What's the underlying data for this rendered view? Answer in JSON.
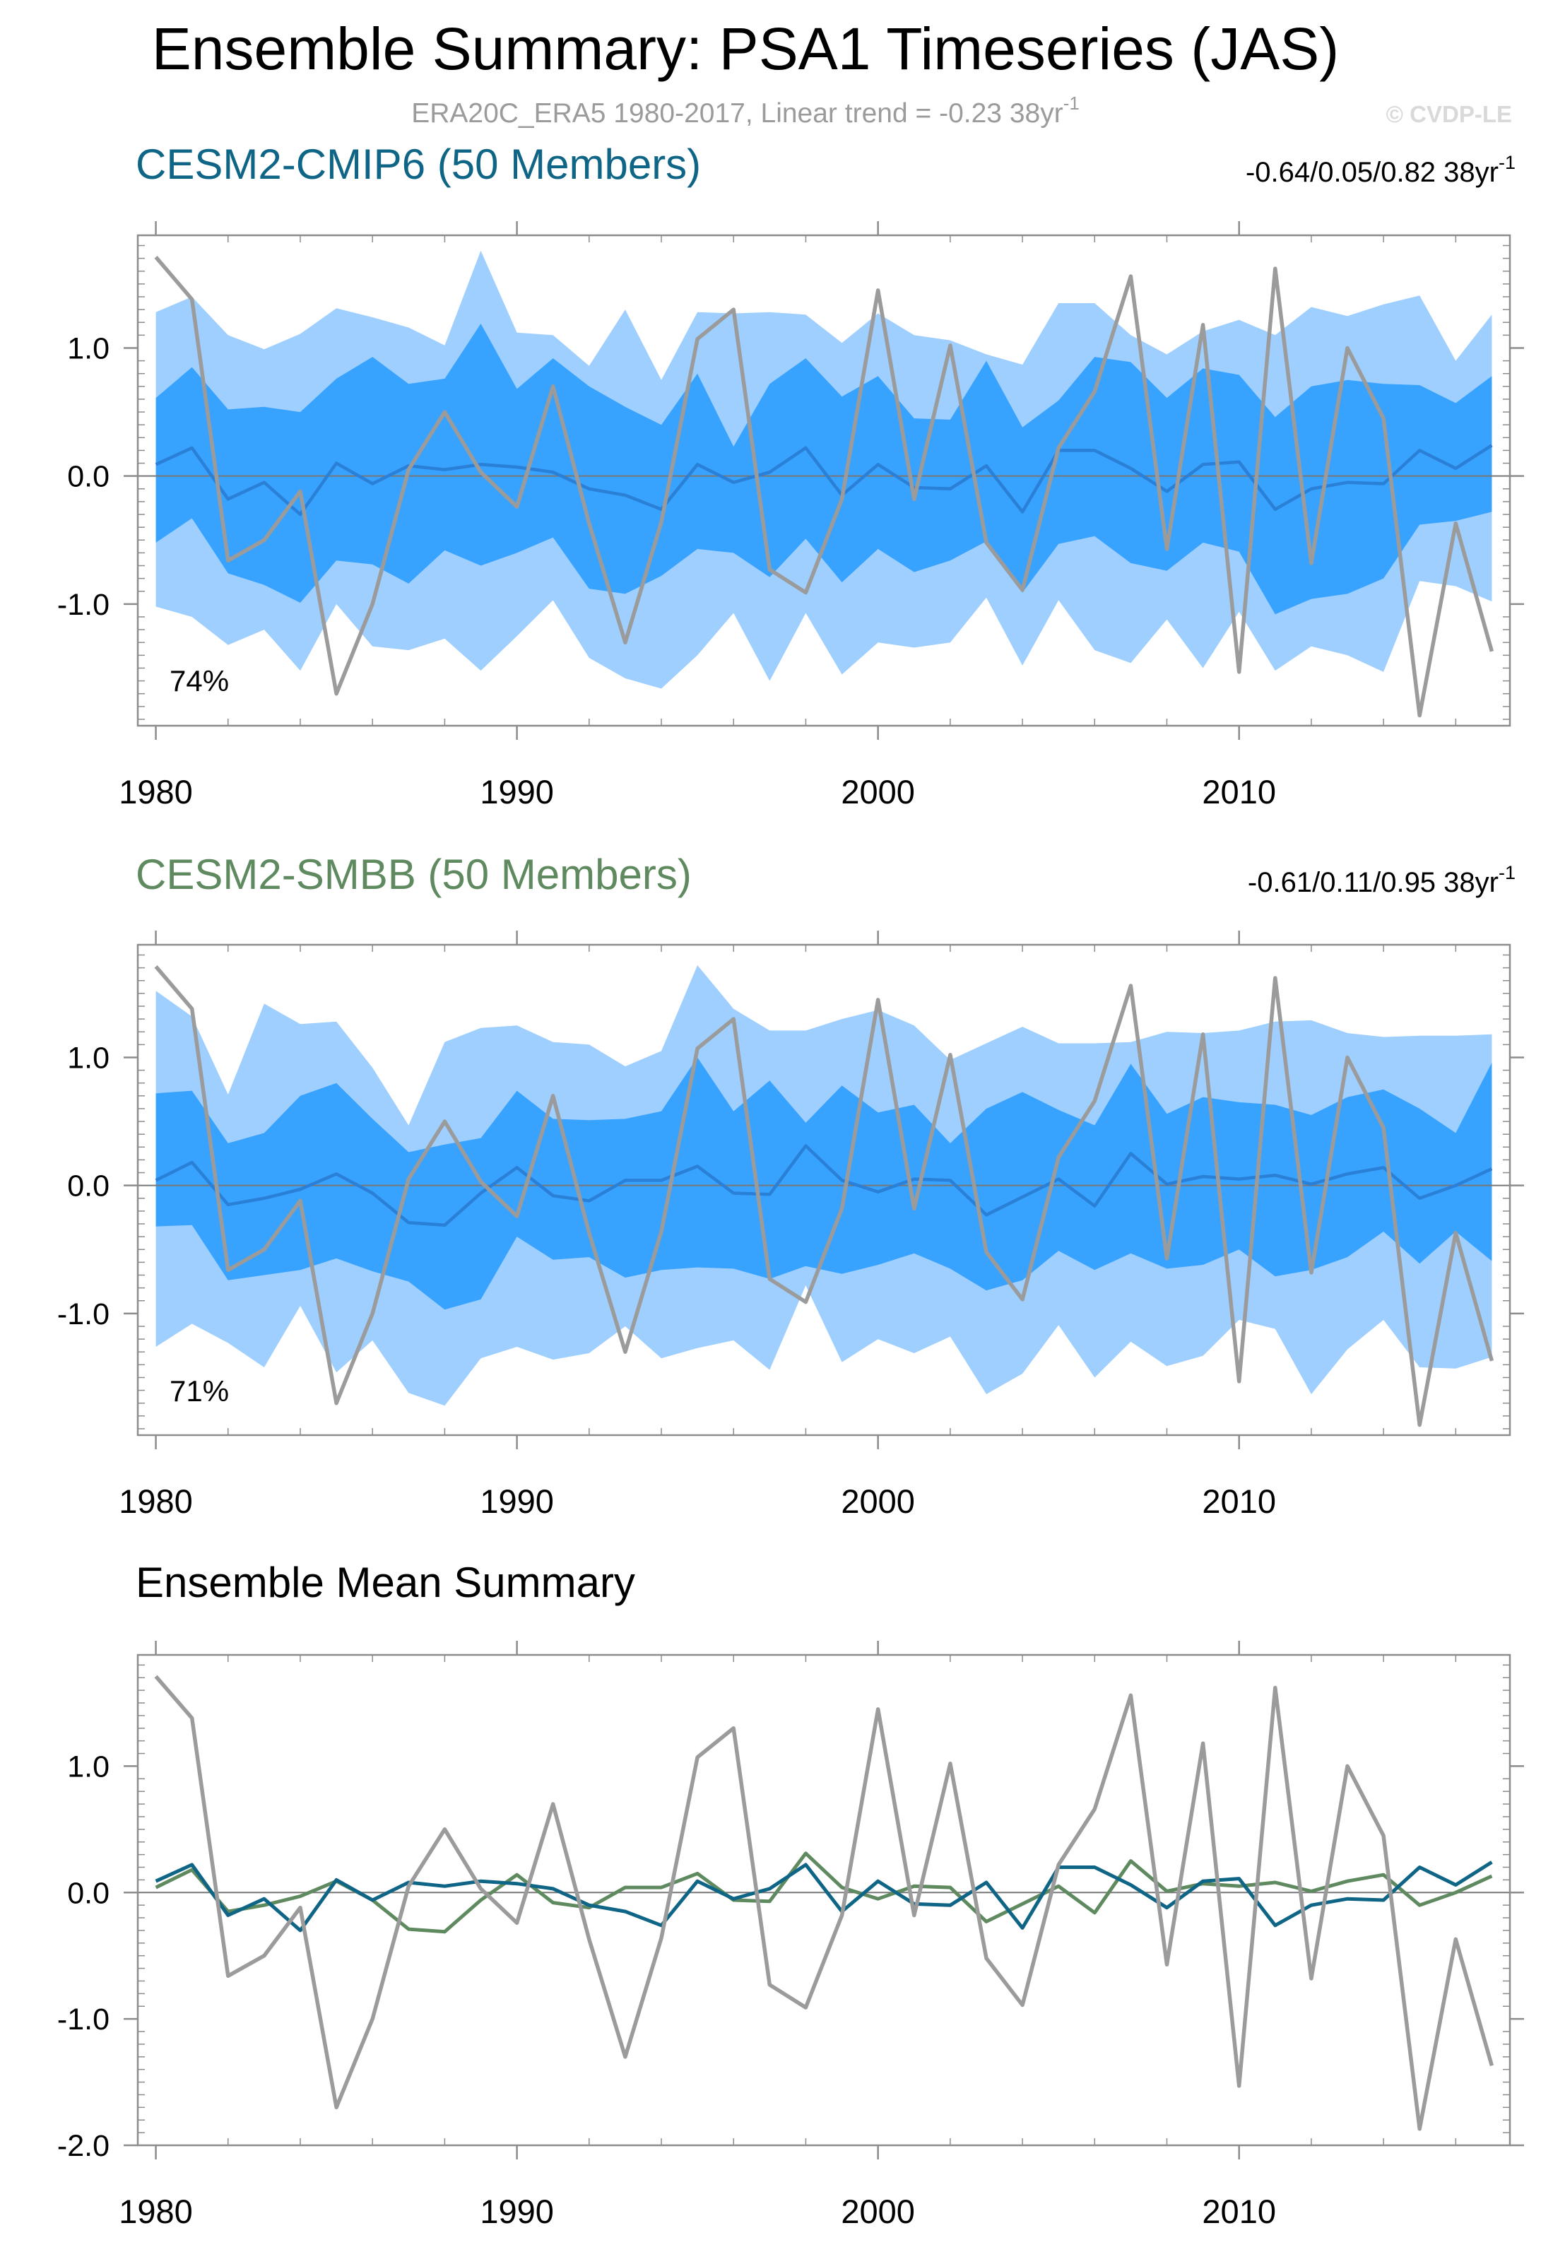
{
  "header": {
    "title": "Ensemble Summary: PSA1 Timeseries (JAS)",
    "subtitle_prefix": "ERA20C_ERA5 1980-2017, Linear trend = -0.23 38yr",
    "subtitle_exp": "-1",
    "copyright": "© CVDP-LE"
  },
  "colors": {
    "obs": "#9b9b9b",
    "light_band": "#9ecfff",
    "dark_band": "#38a2ff",
    "ens_mean_line": "#2a7fd6",
    "cmip6": "#0f6586",
    "smbb": "#5f8a60",
    "frame": "#8c8c8c"
  },
  "panels": [
    {
      "title": "CESM2-CMIP6 (50 Members)",
      "trend_prefix": "-0.64/0.05/0.82 38yr",
      "trend_exp": "-1",
      "pct_label": "74%"
    },
    {
      "title": "CESM2-SMBB (50 Members)",
      "trend_prefix": "-0.61/0.11/0.95 38yr",
      "trend_exp": "-1",
      "pct_label": "71%"
    },
    {
      "title": "Ensemble Mean Summary"
    }
  ],
  "chart_data": [
    {
      "type": "area",
      "title": "CESM2-CMIP6 (50 Members)",
      "x": [
        1980,
        1981,
        1982,
        1983,
        1984,
        1985,
        1986,
        1987,
        1988,
        1989,
        1990,
        1991,
        1992,
        1993,
        1994,
        1995,
        1996,
        1997,
        1998,
        1999,
        2000,
        2001,
        2002,
        2003,
        2004,
        2005,
        2006,
        2007,
        2008,
        2009,
        2010,
        2011,
        2012,
        2013,
        2014,
        2015,
        2016,
        2017
      ],
      "xlim": [
        1979.5,
        2017.5
      ],
      "ylim": [
        -1.95,
        1.88
      ],
      "xticks": [
        1980,
        1990,
        2000,
        2010
      ],
      "xtick_labels": [
        "1980",
        "1990",
        "2000",
        "2010"
      ],
      "yticks": [
        -1.0,
        0.0,
        1.0
      ],
      "ytick_labels": [
        "-1.0",
        "0.0",
        "1.0"
      ],
      "series": [
        {
          "name": "observations",
          "values": [
            1.71,
            1.38,
            -0.66,
            -0.5,
            -0.12,
            -1.7,
            -1.0,
            0.05,
            0.5,
            0.03,
            -0.24,
            0.7,
            -0.37,
            -1.3,
            -0.36,
            1.07,
            1.3,
            -0.73,
            -0.91,
            -0.18,
            1.45,
            -0.18,
            1.02,
            -0.52,
            -0.89,
            0.22,
            0.66,
            1.56,
            -0.57,
            1.18,
            -1.53,
            1.62,
            -0.68,
            1.0,
            0.45,
            -1.87,
            -0.37,
            -1.37
          ]
        },
        {
          "name": "ensemble mean",
          "values": [
            0.09,
            0.22,
            -0.18,
            -0.05,
            -0.3,
            0.1,
            -0.06,
            0.08,
            0.05,
            0.09,
            0.07,
            0.03,
            -0.1,
            -0.15,
            -0.26,
            0.09,
            -0.05,
            0.03,
            0.22,
            -0.15,
            0.09,
            -0.09,
            -0.1,
            0.08,
            -0.28,
            0.2,
            0.2,
            0.06,
            -0.12,
            0.09,
            0.11,
            -0.26,
            -0.1,
            -0.05,
            -0.06,
            0.2,
            0.06,
            0.24
          ]
        },
        {
          "name": "band upper light",
          "values": [
            1.28,
            1.4,
            1.1,
            0.99,
            1.11,
            1.31,
            1.24,
            1.16,
            1.02,
            1.76,
            1.12,
            1.1,
            0.86,
            1.3,
            0.75,
            1.28,
            1.27,
            1.28,
            1.26,
            1.04,
            1.27,
            1.1,
            1.06,
            0.95,
            0.87,
            1.35,
            1.35,
            1.1,
            0.95,
            1.13,
            1.22,
            1.1,
            1.32,
            1.25,
            1.34,
            1.41,
            0.9,
            1.26
          ]
        },
        {
          "name": "band upper dark",
          "values": [
            0.61,
            0.85,
            0.52,
            0.54,
            0.5,
            0.76,
            0.93,
            0.72,
            0.76,
            1.19,
            0.68,
            0.92,
            0.7,
            0.54,
            0.4,
            0.8,
            0.23,
            0.72,
            0.92,
            0.62,
            0.78,
            0.45,
            0.44,
            0.9,
            0.38,
            0.59,
            0.93,
            0.89,
            0.61,
            0.84,
            0.79,
            0.46,
            0.7,
            0.75,
            0.72,
            0.71,
            0.57,
            0.78
          ]
        },
        {
          "name": "band lower dark",
          "values": [
            -0.52,
            -0.33,
            -0.76,
            -0.85,
            -0.99,
            -0.66,
            -0.69,
            -0.84,
            -0.58,
            -0.7,
            -0.6,
            -0.48,
            -0.88,
            -0.92,
            -0.78,
            -0.57,
            -0.6,
            -0.79,
            -0.49,
            -0.83,
            -0.57,
            -0.75,
            -0.66,
            -0.51,
            -0.91,
            -0.53,
            -0.47,
            -0.68,
            -0.74,
            -0.52,
            -0.59,
            -1.08,
            -0.96,
            -0.92,
            -0.8,
            -0.38,
            -0.35,
            -0.28
          ]
        },
        {
          "name": "band lower light",
          "values": [
            -1.02,
            -1.1,
            -1.32,
            -1.2,
            -1.52,
            -1.0,
            -1.33,
            -1.36,
            -1.27,
            -1.52,
            -1.25,
            -0.97,
            -1.42,
            -1.58,
            -1.66,
            -1.4,
            -1.07,
            -1.6,
            -1.07,
            -1.55,
            -1.3,
            -1.34,
            -1.3,
            -0.95,
            -1.48,
            -0.97,
            -1.36,
            -1.46,
            -1.12,
            -1.5,
            -1.06,
            -1.52,
            -1.33,
            -1.4,
            -1.53,
            -0.82,
            -0.86,
            -0.98
          ]
        }
      ]
    },
    {
      "type": "area",
      "title": "CESM2-SMBB (50 Members)",
      "x": [
        1980,
        1981,
        1982,
        1983,
        1984,
        1985,
        1986,
        1987,
        1988,
        1989,
        1990,
        1991,
        1992,
        1993,
        1994,
        1995,
        1996,
        1997,
        1998,
        1999,
        2000,
        2001,
        2002,
        2003,
        2004,
        2005,
        2006,
        2007,
        2008,
        2009,
        2010,
        2011,
        2012,
        2013,
        2014,
        2015,
        2016,
        2017
      ],
      "xlim": [
        1979.5,
        2017.5
      ],
      "ylim": [
        -1.95,
        1.88
      ],
      "xticks": [
        1980,
        1990,
        2000,
        2010
      ],
      "xtick_labels": [
        "1980",
        "1990",
        "2000",
        "2010"
      ],
      "yticks": [
        -1.0,
        0.0,
        1.0
      ],
      "ytick_labels": [
        "-1.0",
        "0.0",
        "1.0"
      ],
      "series": [
        {
          "name": "observations",
          "values": [
            1.71,
            1.38,
            -0.66,
            -0.5,
            -0.12,
            -1.7,
            -1.0,
            0.05,
            0.5,
            0.03,
            -0.24,
            0.7,
            -0.37,
            -1.3,
            -0.36,
            1.07,
            1.3,
            -0.73,
            -0.91,
            -0.18,
            1.45,
            -0.18,
            1.02,
            -0.52,
            -0.89,
            0.22,
            0.66,
            1.56,
            -0.57,
            1.18,
            -1.53,
            1.62,
            -0.68,
            1.0,
            0.45,
            -1.87,
            -0.37,
            -1.37
          ]
        },
        {
          "name": "ensemble mean",
          "values": [
            0.04,
            0.18,
            -0.15,
            -0.1,
            -0.03,
            0.09,
            -0.06,
            -0.29,
            -0.31,
            -0.06,
            0.14,
            -0.08,
            -0.12,
            0.04,
            0.04,
            0.15,
            -0.06,
            -0.07,
            0.31,
            0.04,
            -0.05,
            0.05,
            0.04,
            -0.23,
            -0.09,
            0.05,
            -0.16,
            0.25,
            0.01,
            0.07,
            0.05,
            0.08,
            0.01,
            0.09,
            0.14,
            -0.1,
            0.0,
            0.13
          ]
        },
        {
          "name": "band upper light",
          "values": [
            1.52,
            1.32,
            0.71,
            1.42,
            1.26,
            1.28,
            0.92,
            0.47,
            1.12,
            1.23,
            1.25,
            1.12,
            1.1,
            0.93,
            1.05,
            1.72,
            1.38,
            1.21,
            1.21,
            1.3,
            1.37,
            1.25,
            0.98,
            1.11,
            1.24,
            1.11,
            1.11,
            1.12,
            1.2,
            1.19,
            1.21,
            1.28,
            1.29,
            1.19,
            1.16,
            1.17,
            1.17,
            1.18
          ]
        },
        {
          "name": "band upper dark",
          "values": [
            0.72,
            0.74,
            0.33,
            0.41,
            0.7,
            0.8,
            0.52,
            0.26,
            0.32,
            0.37,
            0.74,
            0.52,
            0.51,
            0.52,
            0.58,
            1.0,
            0.58,
            0.82,
            0.49,
            0.78,
            0.57,
            0.63,
            0.33,
            0.6,
            0.73,
            0.59,
            0.47,
            0.95,
            0.56,
            0.69,
            0.65,
            0.63,
            0.55,
            0.69,
            0.75,
            0.6,
            0.41,
            0.96
          ]
        },
        {
          "name": "band lower dark",
          "values": [
            -0.32,
            -0.31,
            -0.74,
            -0.7,
            -0.66,
            -0.57,
            -0.67,
            -0.75,
            -0.97,
            -0.89,
            -0.4,
            -0.58,
            -0.56,
            -0.72,
            -0.66,
            -0.64,
            -0.65,
            -0.73,
            -0.63,
            -0.69,
            -0.62,
            -0.53,
            -0.65,
            -0.82,
            -0.74,
            -0.51,
            -0.66,
            -0.53,
            -0.65,
            -0.62,
            -0.5,
            -0.71,
            -0.66,
            -0.56,
            -0.36,
            -0.61,
            -0.36,
            -0.59
          ]
        },
        {
          "name": "band lower light",
          "values": [
            -1.26,
            -1.08,
            -1.23,
            -1.42,
            -0.94,
            -1.46,
            -1.21,
            -1.62,
            -1.72,
            -1.35,
            -1.26,
            -1.36,
            -1.31,
            -1.1,
            -1.35,
            -1.27,
            -1.21,
            -1.44,
            -0.78,
            -1.38,
            -1.2,
            -1.31,
            -1.18,
            -1.63,
            -1.47,
            -1.09,
            -1.5,
            -1.22,
            -1.41,
            -1.33,
            -1.05,
            -1.12,
            -1.63,
            -1.28,
            -1.05,
            -1.42,
            -1.43,
            -1.34
          ]
        }
      ]
    },
    {
      "type": "line",
      "title": "Ensemble Mean Summary",
      "x": [
        1980,
        1981,
        1982,
        1983,
        1984,
        1985,
        1986,
        1987,
        1988,
        1989,
        1990,
        1991,
        1992,
        1993,
        1994,
        1995,
        1996,
        1997,
        1998,
        1999,
        2000,
        2001,
        2002,
        2003,
        2004,
        2005,
        2006,
        2007,
        2008,
        2009,
        2010,
        2011,
        2012,
        2013,
        2014,
        2015,
        2016,
        2017
      ],
      "xlim": [
        1979.5,
        2017.5
      ],
      "ylim": [
        -2.0,
        1.88
      ],
      "xticks": [
        1980,
        1990,
        2000,
        2010
      ],
      "xtick_labels": [
        "1980",
        "1990",
        "2000",
        "2010"
      ],
      "yticks": [
        -2.0,
        -1.0,
        0.0,
        1.0
      ],
      "ytick_labels": [
        "-2.0",
        "-1.0",
        "0.0",
        "1.0"
      ],
      "series": [
        {
          "name": "observations",
          "values": [
            1.71,
            1.38,
            -0.66,
            -0.5,
            -0.12,
            -1.7,
            -1.0,
            0.05,
            0.5,
            0.03,
            -0.24,
            0.7,
            -0.37,
            -1.3,
            -0.36,
            1.07,
            1.3,
            -0.73,
            -0.91,
            -0.18,
            1.45,
            -0.18,
            1.02,
            -0.52,
            -0.89,
            0.22,
            0.66,
            1.56,
            -0.57,
            1.18,
            -1.53,
            1.62,
            -0.68,
            1.0,
            0.45,
            -1.87,
            -0.37,
            -1.37
          ]
        },
        {
          "name": "CESM2-CMIP6",
          "values": [
            0.09,
            0.22,
            -0.18,
            -0.05,
            -0.3,
            0.1,
            -0.06,
            0.08,
            0.05,
            0.09,
            0.07,
            0.03,
            -0.1,
            -0.15,
            -0.26,
            0.09,
            -0.05,
            0.03,
            0.22,
            -0.15,
            0.09,
            -0.09,
            -0.1,
            0.08,
            -0.28,
            0.2,
            0.2,
            0.06,
            -0.12,
            0.09,
            0.11,
            -0.26,
            -0.1,
            -0.05,
            -0.06,
            0.2,
            0.06,
            0.24
          ]
        },
        {
          "name": "CESM2-SMBB",
          "values": [
            0.04,
            0.18,
            -0.15,
            -0.1,
            -0.03,
            0.09,
            -0.06,
            -0.29,
            -0.31,
            -0.06,
            0.14,
            -0.08,
            -0.12,
            0.04,
            0.04,
            0.15,
            -0.06,
            -0.07,
            0.31,
            0.04,
            -0.05,
            0.05,
            0.04,
            -0.23,
            -0.09,
            0.05,
            -0.16,
            0.25,
            0.01,
            0.07,
            0.05,
            0.08,
            0.01,
            0.09,
            0.14,
            -0.1,
            0.0,
            0.13
          ]
        }
      ]
    }
  ]
}
